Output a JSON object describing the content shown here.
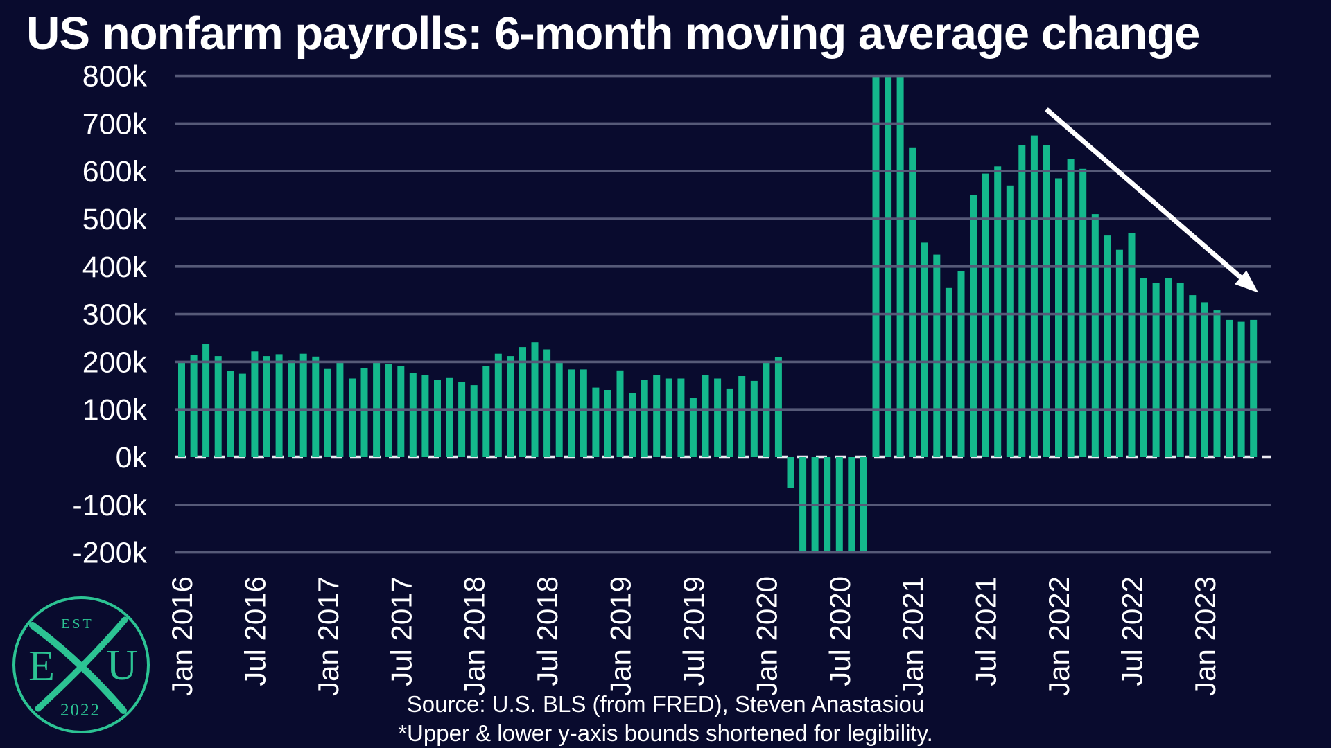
{
  "title": "US nonfarm payrolls: 6-month moving average change",
  "source_line": "Source: U.S. BLS (from FRED), Steven Anastasiou",
  "footnote_line": "*Upper & lower y-axis bounds shortened for legibility.",
  "logo": {
    "est_label": "EST",
    "year_label": "2022",
    "left_letter": "E",
    "right_letter": "U"
  },
  "colors": {
    "background": "#090b2e",
    "bar": "#14b88c",
    "grid": "#565a78",
    "zero_line": "#e9e9f0",
    "text": "#ffffff",
    "logo": "#2cc393",
    "arrow": "#ffffff"
  },
  "chart_data": {
    "type": "bar",
    "title": "US nonfarm payrolls: 6-month moving average change",
    "xlabel": "",
    "ylabel": "",
    "ylim": [
      -200,
      800
    ],
    "grid": true,
    "legend": "none",
    "y_axis": {
      "min": -200,
      "max": 800,
      "tick_step": 100
    },
    "y_tick_labels": [
      "800k",
      "700k",
      "600k",
      "500k",
      "400k",
      "300k",
      "200k",
      "100k",
      "0k",
      "-100k",
      "-200k"
    ],
    "x_tick_labels": [
      "Jan 2016",
      "Jul 2016",
      "Jan 2017",
      "Jul 2017",
      "Jan 2018",
      "Jul 2018",
      "Jan 2019",
      "Jul 2019",
      "Jan 2020",
      "Jul 2020",
      "Jan 2021",
      "Jul 2021",
      "Jan 2022",
      "Jul 2022",
      "Jan 2023"
    ],
    "months": [
      "Jan 2016",
      "Feb 2016",
      "Mar 2016",
      "Apr 2016",
      "May 2016",
      "Jun 2016",
      "Jul 2016",
      "Aug 2016",
      "Sep 2016",
      "Oct 2016",
      "Nov 2016",
      "Dec 2016",
      "Jan 2017",
      "Feb 2017",
      "Mar 2017",
      "Apr 2017",
      "May 2017",
      "Jun 2017",
      "Jul 2017",
      "Aug 2017",
      "Sep 2017",
      "Oct 2017",
      "Nov 2017",
      "Dec 2017",
      "Jan 2018",
      "Feb 2018",
      "Mar 2018",
      "Apr 2018",
      "May 2018",
      "Jun 2018",
      "Jul 2018",
      "Aug 2018",
      "Sep 2018",
      "Oct 2018",
      "Nov 2018",
      "Dec 2018",
      "Jan 2019",
      "Feb 2019",
      "Mar 2019",
      "Apr 2019",
      "May 2019",
      "Jun 2019",
      "Jul 2019",
      "Aug 2019",
      "Sep 2019",
      "Oct 2019",
      "Nov 2019",
      "Dec 2019",
      "Jan 2020",
      "Feb 2020",
      "Mar 2020",
      "Apr 2020",
      "May 2020",
      "Jun 2020",
      "Jul 2020",
      "Aug 2020",
      "Sep 2020",
      "Oct 2020",
      "Nov 2020",
      "Dec 2020",
      "Jan 2021",
      "Feb 2021",
      "Mar 2021",
      "Apr 2021",
      "May 2021",
      "Jun 2021",
      "Jul 2021",
      "Aug 2021",
      "Sep 2021",
      "Oct 2021",
      "Nov 2021",
      "Dec 2021",
      "Jan 2022",
      "Feb 2022",
      "Mar 2022",
      "Apr 2022",
      "May 2022",
      "Jun 2022",
      "Jul 2022",
      "Aug 2022",
      "Sep 2022",
      "Oct 2022",
      "Nov 2022",
      "Dec 2022",
      "Jan 2023",
      "Feb 2023",
      "Mar 2023",
      "Apr 2023",
      "May 2023"
    ],
    "values": [
      200,
      215,
      238,
      212,
      181,
      175,
      222,
      212,
      216,
      203,
      217,
      211,
      185,
      198,
      165,
      186,
      202,
      196,
      191,
      176,
      172,
      162,
      166,
      157,
      151,
      191,
      217,
      212,
      231,
      241,
      226,
      201,
      184,
      184,
      146,
      141,
      182,
      135,
      162,
      172,
      165,
      165,
      125,
      172,
      165,
      144,
      170,
      160,
      200,
      210,
      -65,
      -200,
      -200,
      -200,
      -200,
      -200,
      -200,
      800,
      800,
      800,
      650,
      450,
      425,
      355,
      390,
      550,
      595,
      610,
      570,
      655,
      675,
      655,
      585,
      625,
      605,
      510,
      465,
      435,
      470,
      375,
      365,
      375,
      365,
      340,
      325,
      308,
      288,
      284,
      288
    ],
    "values_unit": "k",
    "clipped_below_axis_min": [
      "Apr 2020",
      "May 2020",
      "Jun 2020",
      "Jul 2020",
      "Aug 2020",
      "Sep 2020"
    ],
    "clipped_above_axis_max": [
      "Oct 2020",
      "Nov 2020",
      "Dec 2020"
    ],
    "trend_arrow": {
      "start_month": "Dec 2021",
      "start_value": 730,
      "end_month": "May 2023",
      "end_value": 345
    }
  }
}
